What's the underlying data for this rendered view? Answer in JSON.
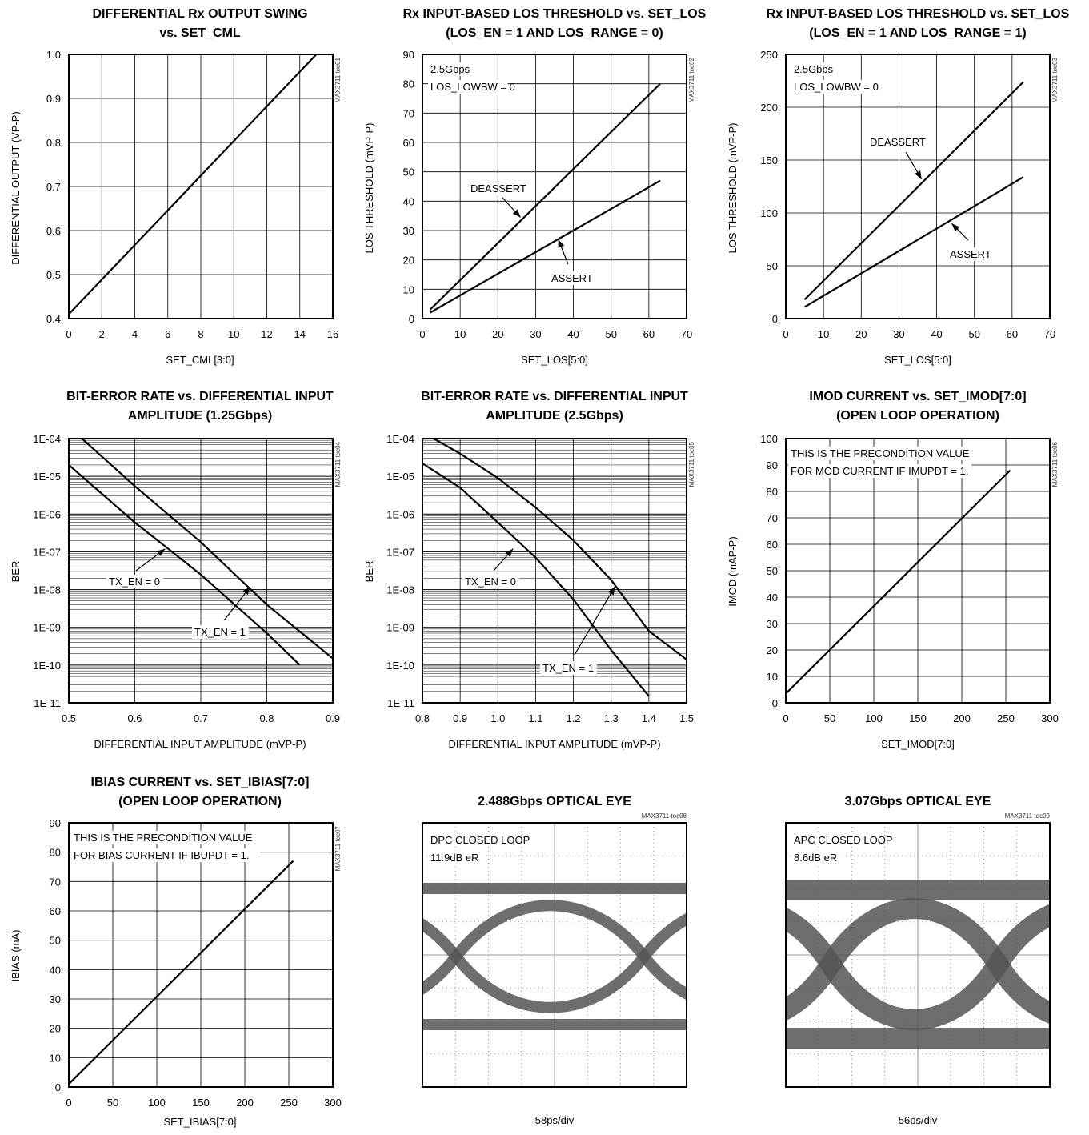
{
  "charts": [
    {
      "id": "toc01",
      "title_lines": [
        "DIFFERENTIAL Rx OUTPUT SWING",
        "vs. SET_CML"
      ],
      "xlabel": "SET_CML[3:0]",
      "ylabel": "DIFFERENTIAL OUTPUT (VP-P)",
      "toc_label": "MAX3711 toc01",
      "x_ticks": [
        "0",
        "2",
        "4",
        "6",
        "8",
        "10",
        "12",
        "14",
        "16"
      ],
      "y_ticks": [
        "1.0",
        "0.9",
        "0.8",
        "0.7",
        "0.6",
        "0.5",
        "0.4"
      ],
      "annotations": []
    },
    {
      "id": "toc02",
      "title_lines": [
        "Rx INPUT-BASED LOS THRESHOLD vs. SET_LOS",
        "(LOS_EN = 1 AND LOS_RANGE = 0)"
      ],
      "xlabel": "SET_LOS[5:0]",
      "ylabel": "LOS THRESHOLD (mVP-P)",
      "toc_label": "MAX3711 toc02",
      "x_ticks": [
        "0",
        "10",
        "20",
        "30",
        "40",
        "50",
        "60",
        "70"
      ],
      "y_ticks": [
        "90",
        "80",
        "70",
        "60",
        "50",
        "40",
        "30",
        "20",
        "10",
        "0"
      ],
      "annotations": [
        {
          "text": "2.5Gbps",
          "kind": "note"
        },
        {
          "text": "LOS_LOWBW = 0",
          "kind": "note"
        },
        {
          "text": "DEASSERT",
          "kind": "callout"
        },
        {
          "text": "ASSERT",
          "kind": "callout"
        }
      ]
    },
    {
      "id": "toc03",
      "title_lines": [
        "Rx INPUT-BASED LOS THRESHOLD vs. SET_LOS",
        "(LOS_EN = 1 AND LOS_RANGE = 1)"
      ],
      "xlabel": "SET_LOS[5:0]",
      "ylabel": "LOS THRESHOLD (mVP-P)",
      "toc_label": "MAX3711 toc03",
      "x_ticks": [
        "0",
        "10",
        "20",
        "30",
        "40",
        "50",
        "60",
        "70"
      ],
      "y_ticks": [
        "250",
        "200",
        "150",
        "100",
        "50",
        "0"
      ],
      "annotations": [
        {
          "text": "2.5Gbps",
          "kind": "note"
        },
        {
          "text": "LOS_LOWBW = 0",
          "kind": "note"
        },
        {
          "text": "DEASSERT",
          "kind": "callout"
        },
        {
          "text": "ASSERT",
          "kind": "callout"
        }
      ]
    },
    {
      "id": "toc04",
      "title_lines": [
        "BIT-ERROR RATE vs. DIFFERENTIAL INPUT",
        "AMPLITUDE (1.25Gbps)"
      ],
      "xlabel": "DIFFERENTIAL INPUT AMPLITUDE (mVP-P)",
      "ylabel": "BER",
      "toc_label": "MAX3711 toc04",
      "x_ticks": [
        "0.5",
        "0.6",
        "0.7",
        "0.8",
        "0.9"
      ],
      "y_ticks": [
        "1E-04",
        "1E-05",
        "1E-06",
        "1E-07",
        "1E-08",
        "1E-09",
        "1E-10",
        "1E-11"
      ],
      "annotations": [
        {
          "text": "TX_EN = 0",
          "kind": "callout"
        },
        {
          "text": "TX_EN = 1",
          "kind": "callout"
        }
      ]
    },
    {
      "id": "toc05",
      "title_lines": [
        "BIT-ERROR RATE vs. DIFFERENTIAL INPUT",
        "AMPLITUDE (2.5Gbps)"
      ],
      "xlabel": "DIFFERENTIAL INPUT AMPLITUDE (mVP-P)",
      "ylabel": "BER",
      "toc_label": "MAX3711 toc05",
      "x_ticks": [
        "0.8",
        "0.9",
        "1.0",
        "1.1",
        "1.2",
        "1.3",
        "1.4",
        "1.5"
      ],
      "y_ticks": [
        "1E-04",
        "1E-05",
        "1E-06",
        "1E-07",
        "1E-08",
        "1E-09",
        "1E-10",
        "1E-11"
      ],
      "annotations": [
        {
          "text": "TX_EN = 0",
          "kind": "callout"
        },
        {
          "text": "TX_EN = 1",
          "kind": "callout"
        }
      ]
    },
    {
      "id": "toc06",
      "title_lines": [
        "IMOD CURRENT vs. SET_IMOD[7:0]",
        "(OPEN LOOP OPERATION)"
      ],
      "xlabel": "SET_IMOD[7:0]",
      "ylabel": "IMOD (mAP-P)",
      "toc_label": "MAX3711 toc06",
      "x_ticks": [
        "0",
        "50",
        "100",
        "150",
        "200",
        "250",
        "300"
      ],
      "y_ticks": [
        "100",
        "90",
        "80",
        "70",
        "60",
        "50",
        "40",
        "30",
        "20",
        "10",
        "0"
      ],
      "annotations": [
        {
          "text": "THIS IS THE PRECONDITION VALUE",
          "kind": "note"
        },
        {
          "text": "FOR MOD CURRENT  IF IMUPDT = 1.",
          "kind": "note"
        }
      ]
    },
    {
      "id": "toc07",
      "title_lines": [
        "IBIAS CURRENT vs. SET_IBIAS[7:0]",
        "(OPEN LOOP OPERATION)"
      ],
      "xlabel": "SET_IBIAS[7:0]",
      "ylabel": "IBIAS (mA)",
      "toc_label": "MAX3711 toc07",
      "x_ticks": [
        "0",
        "50",
        "100",
        "150",
        "200",
        "250",
        "300"
      ],
      "y_ticks": [
        "90",
        "80",
        "70",
        "60",
        "50",
        "40",
        "30",
        "20",
        "10",
        "0"
      ],
      "annotations": [
        {
          "text": "THIS IS THE PRECONDITION VALUE",
          "kind": "note"
        },
        {
          "text": "FOR BIAS CURRENT  IF IBUPDT = 1.",
          "kind": "note"
        }
      ]
    },
    {
      "id": "toc08",
      "title_lines": [
        "2.488Gbps OPTICAL EYE"
      ],
      "xlabel": "58ps/div",
      "toc_label": "MAX3711 toc08",
      "annotations": [
        {
          "text": "DPC CLOSED LOOP",
          "kind": "note"
        },
        {
          "text": "11.9dB eR",
          "kind": "note"
        }
      ]
    },
    {
      "id": "toc09",
      "title_lines": [
        "3.07Gbps OPTICAL EYE"
      ],
      "xlabel": "56ps/div",
      "toc_label": "MAX3711 toc09",
      "annotations": [
        {
          "text": "APC CLOSED LOOP",
          "kind": "note"
        },
        {
          "text": "8.6dB eR",
          "kind": "note"
        }
      ]
    }
  ],
  "chart_data": [
    {
      "type": "line",
      "title": "DIFFERENTIAL Rx OUTPUT SWING vs. SET_CML",
      "xlabel": "SET_CML[3:0]",
      "ylabel": "DIFFERENTIAL OUTPUT (VP-P)",
      "xlim": [
        0,
        16
      ],
      "ylim": [
        0.4,
        1.0
      ],
      "grid": true,
      "series": [
        {
          "x": [
            0,
            15
          ],
          "y": [
            0.41,
            1.0
          ]
        }
      ]
    },
    {
      "type": "line",
      "title": "Rx INPUT-BASED LOS THRESHOLD vs. SET_LOS (LOS_EN = 1 AND LOS_RANGE = 0)",
      "xlabel": "SET_LOS[5:0]",
      "ylabel": "LOS THRESHOLD (mVP-P)",
      "xlim": [
        0,
        70
      ],
      "ylim": [
        0,
        90
      ],
      "grid": true,
      "series": [
        {
          "name": "DEASSERT",
          "x": [
            2,
            63
          ],
          "y": [
            3,
            80
          ]
        },
        {
          "name": "ASSERT",
          "x": [
            2,
            63
          ],
          "y": [
            2,
            47
          ]
        }
      ]
    },
    {
      "type": "line",
      "title": "Rx INPUT-BASED LOS THRESHOLD vs. SET_LOS (LOS_EN = 1 AND LOS_RANGE = 1)",
      "xlabel": "SET_LOS[5:0]",
      "ylabel": "LOS THRESHOLD (mVP-P)",
      "xlim": [
        0,
        70
      ],
      "ylim": [
        0,
        250
      ],
      "grid": true,
      "series": [
        {
          "name": "DEASSERT",
          "x": [
            5,
            63
          ],
          "y": [
            18,
            224
          ]
        },
        {
          "name": "ASSERT",
          "x": [
            5,
            63
          ],
          "y": [
            11,
            134
          ]
        }
      ]
    },
    {
      "type": "line",
      "title": "BIT-ERROR RATE vs. DIFFERENTIAL INPUT AMPLITUDE (1.25Gbps)",
      "xlabel": "DIFFERENTIAL INPUT AMPLITUDE (mVP-P)",
      "ylabel": "BER",
      "xlim": [
        0.5,
        0.9
      ],
      "ylim": [
        1e-11,
        0.0001
      ],
      "yscale": "log",
      "grid": true,
      "series": [
        {
          "name": "TX_EN = 0",
          "x": [
            0.5,
            0.6,
            0.7,
            0.8,
            0.85
          ],
          "y": [
            2e-05,
            6e-07,
            2.5e-08,
            7e-10,
            1e-10
          ]
        },
        {
          "name": "TX_EN = 1",
          "x": [
            0.52,
            0.6,
            0.7,
            0.8,
            0.9
          ],
          "y": [
            0.0001,
            5.5e-06,
            1.8e-07,
            4e-09,
            1.5e-10
          ]
        }
      ]
    },
    {
      "type": "line",
      "title": "BIT-ERROR RATE vs. DIFFERENTIAL INPUT AMPLITUDE (2.5Gbps)",
      "xlabel": "DIFFERENTIAL INPUT AMPLITUDE (mVP-P)",
      "ylabel": "BER",
      "xlim": [
        0.8,
        1.5
      ],
      "ylim": [
        1e-11,
        0.0001
      ],
      "yscale": "log",
      "grid": true,
      "series": [
        {
          "name": "TX_EN = 0",
          "x": [
            0.8,
            0.9,
            1.0,
            1.1,
            1.2,
            1.3,
            1.4
          ],
          "y": [
            2.2e-05,
            5e-06,
            6e-07,
            7e-08,
            5.5e-09,
            2.5e-10,
            1.5e-11
          ]
        },
        {
          "name": "TX_EN = 1",
          "x": [
            0.83,
            0.9,
            1.0,
            1.1,
            1.2,
            1.3,
            1.4,
            1.5
          ],
          "y": [
            0.0001,
            4e-05,
            9e-06,
            1.5e-06,
            2e-07,
            1.8e-08,
            8e-10,
            1.4e-10
          ]
        }
      ]
    },
    {
      "type": "line",
      "title": "IMOD CURRENT vs. SET_IMOD[7:0] (OPEN LOOP OPERATION)",
      "xlabel": "SET_IMOD[7:0]",
      "ylabel": "IMOD (mAP-P)",
      "xlim": [
        0,
        300
      ],
      "ylim": [
        0,
        100
      ],
      "grid": true,
      "series": [
        {
          "x": [
            0,
            255
          ],
          "y": [
            3.5,
            88
          ]
        }
      ]
    },
    {
      "type": "line",
      "title": "IBIAS CURRENT vs. SET_IBIAS[7:0] (OPEN LOOP OPERATION)",
      "xlabel": "SET_IBIAS[7:0]",
      "ylabel": "IBIAS (mA)",
      "xlim": [
        0,
        300
      ],
      "ylim": [
        0,
        90
      ],
      "grid": true,
      "series": [
        {
          "x": [
            0,
            255
          ],
          "y": [
            1,
            77
          ]
        }
      ]
    },
    {
      "type": "eye-diagram",
      "title": "2.488Gbps OPTICAL EYE",
      "xlabel": "58ps/div",
      "grid": "dotted 8x8"
    },
    {
      "type": "eye-diagram",
      "title": "3.07Gbps OPTICAL EYE",
      "xlabel": "56ps/div",
      "grid": "dotted 8x8"
    }
  ],
  "colors": {
    "line": "#000000",
    "grid": "#000000",
    "eye": "#555555",
    "background": "#ffffff"
  }
}
